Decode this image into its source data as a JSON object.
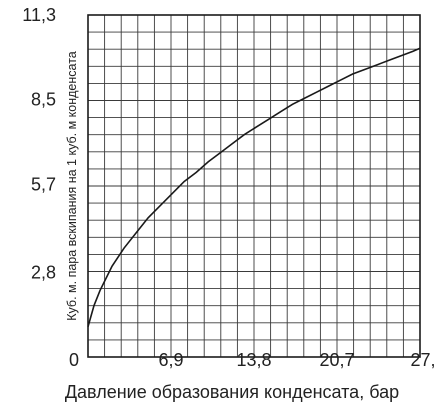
{
  "chart_data": {
    "type": "line",
    "xlabel": "Давление образования конденсата, бар",
    "ylabel": "Куб. м. пара вскипания на 1 куб. м конденсата",
    "xlim": [
      0,
      27.6
    ],
    "ylim": [
      0,
      11.3
    ],
    "x_ticks": [
      "6,9",
      "13,8",
      "20,7",
      "27,6"
    ],
    "x_tick_values": [
      6.9,
      13.8,
      20.7,
      27.6
    ],
    "y_ticks": [
      "2,8",
      "5,7",
      "8,5",
      "11,3"
    ],
    "y_tick_values": [
      2.8,
      5.7,
      8.5,
      11.3
    ],
    "origin_label": "0",
    "grid": true,
    "series": [
      {
        "color": "#1a1a1a",
        "x": [
          0,
          0.5,
          1,
          2,
          3,
          4,
          5,
          6,
          7,
          8,
          9,
          10,
          11,
          12,
          13,
          14,
          15,
          16,
          17,
          18,
          19,
          20,
          21,
          22,
          23,
          24,
          25,
          26,
          27,
          27.6
        ],
        "y": [
          1.0,
          1.7,
          2.2,
          3.0,
          3.6,
          4.1,
          4.6,
          5.0,
          5.4,
          5.8,
          6.1,
          6.45,
          6.75,
          7.05,
          7.35,
          7.6,
          7.85,
          8.1,
          8.35,
          8.55,
          8.75,
          8.95,
          9.15,
          9.35,
          9.5,
          9.65,
          9.8,
          9.95,
          10.1,
          10.2
        ]
      }
    ]
  }
}
